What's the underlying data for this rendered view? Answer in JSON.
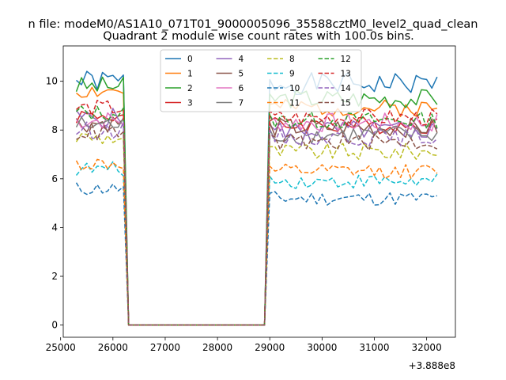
{
  "chart_data": {
    "type": "line",
    "suptitle": "n file: modeM0/AS1A10_071T01_9000005096_35588cztM0_level2_quad_clean",
    "title": "Quadrant 2 module wise count rates with 100.0s bins.",
    "xlabel": "",
    "ylabel": "",
    "offset_text": "+3.888e8",
    "xlim": [
      25050,
      32550
    ],
    "ylim": [
      -0.5,
      11.45
    ],
    "xticks": [
      25000,
      26000,
      27000,
      28000,
      29000,
      30000,
      31000,
      32000
    ],
    "yticks": [
      0,
      2,
      4,
      6,
      8,
      10
    ],
    "segments": [
      {
        "start": 25300,
        "end": 26200,
        "gap_end": 26300
      },
      {
        "start": 28900,
        "gap_start": 28900,
        "end": 32200
      }
    ],
    "gap_value": 0,
    "gap_range": [
      26300,
      28900
    ],
    "bin": 100,
    "legend": {
      "placement": "top-center",
      "columns": 4
    },
    "series": [
      {
        "name": "0",
        "color": "#1f77b4",
        "dash": false,
        "base": 10.0,
        "base2": 9.9,
        "noise": 0.45,
        "seed": 1
      },
      {
        "name": "1",
        "color": "#ff7f0e",
        "dash": false,
        "base": 9.6,
        "base2": 8.9,
        "noise": 0.35,
        "seed": 2
      },
      {
        "name": "2",
        "color": "#2ca02c",
        "dash": false,
        "base": 9.8,
        "base2": 9.3,
        "noise": 0.4,
        "seed": 3
      },
      {
        "name": "3",
        "color": "#d62728",
        "dash": false,
        "base": 8.6,
        "base2": 8.2,
        "noise": 0.35,
        "seed": 4
      },
      {
        "name": "4",
        "color": "#9467bd",
        "dash": false,
        "base": 8.5,
        "base2": 8.0,
        "noise": 0.4,
        "seed": 5
      },
      {
        "name": "5",
        "color": "#8c564b",
        "dash": false,
        "base": 8.3,
        "base2": 8.1,
        "noise": 0.4,
        "seed": 6
      },
      {
        "name": "6",
        "color": "#e377c2",
        "dash": false,
        "base": 8.4,
        "base2": 8.3,
        "noise": 0.4,
        "seed": 7
      },
      {
        "name": "7",
        "color": "#7f7f7f",
        "dash": false,
        "base": 8.2,
        "base2": 7.8,
        "noise": 0.4,
        "seed": 8
      },
      {
        "name": "8",
        "color": "#bcbd22",
        "dash": true,
        "base": 7.7,
        "base2": 7.1,
        "noise": 0.35,
        "seed": 9
      },
      {
        "name": "9",
        "color": "#17becf",
        "dash": true,
        "base": 6.4,
        "base2": 5.9,
        "noise": 0.3,
        "seed": 10
      },
      {
        "name": "10",
        "color": "#1f77b4",
        "dash": true,
        "base": 5.6,
        "base2": 5.2,
        "noise": 0.3,
        "seed": 11
      },
      {
        "name": "11",
        "color": "#ff7f0e",
        "dash": true,
        "base": 6.6,
        "base2": 6.3,
        "noise": 0.3,
        "seed": 12
      },
      {
        "name": "12",
        "color": "#2ca02c",
        "dash": true,
        "base": 8.7,
        "base2": 8.4,
        "noise": 0.35,
        "seed": 13
      },
      {
        "name": "13",
        "color": "#d62728",
        "dash": true,
        "base": 8.9,
        "base2": 8.5,
        "noise": 0.35,
        "seed": 14
      },
      {
        "name": "14",
        "color": "#9467bd",
        "dash": true,
        "base": 8.0,
        "base2": 7.7,
        "noise": 0.35,
        "seed": 15
      },
      {
        "name": "15",
        "color": "#8c564b",
        "dash": true,
        "base": 7.9,
        "base2": 7.5,
        "noise": 0.35,
        "seed": 16
      }
    ]
  }
}
